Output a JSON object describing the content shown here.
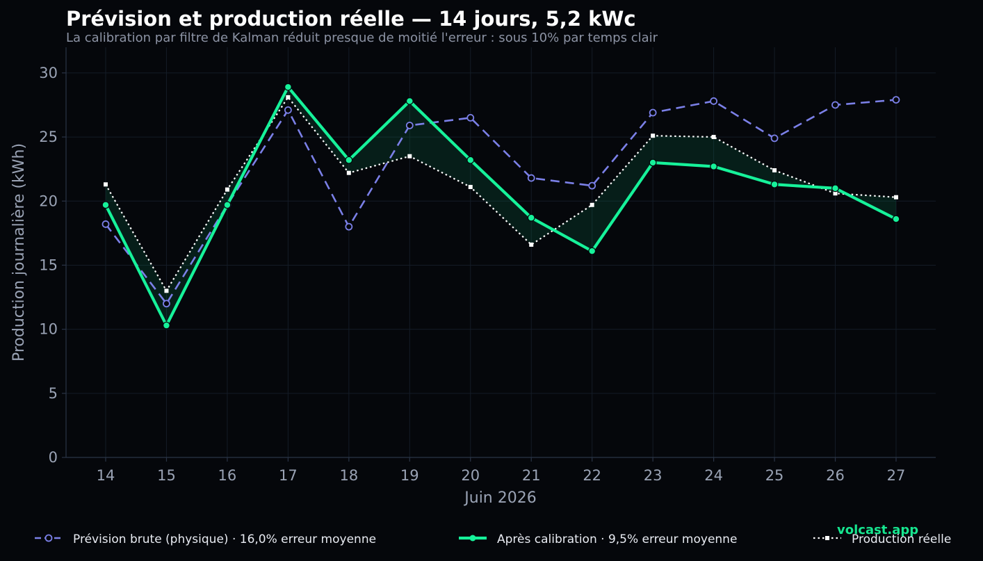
{
  "chart_data": {
    "type": "line",
    "title": "Prévision et production réelle — 14 jours, 5,2 kWc",
    "subtitle": "La calibration par filtre de Kalman réduit presque de moitié l'erreur : sous 10% par temps clair",
    "xlabel": "Juin 2026",
    "ylabel": "Production journalière (kWh)",
    "categories": [
      "14",
      "15",
      "16",
      "17",
      "18",
      "19",
      "20",
      "21",
      "22",
      "23",
      "24",
      "25",
      "26",
      "27"
    ],
    "ylim": [
      0,
      32
    ],
    "yticks": [
      0,
      5,
      10,
      15,
      20,
      25,
      30
    ],
    "grid": true,
    "legend_position": "bottom",
    "series": [
      {
        "name": "Prévision brute (physique)  ·  16,0% erreur moyenne",
        "color": "#7b80e8",
        "style": "dashed",
        "marker": "circle-open",
        "values": [
          18.2,
          12.0,
          19.7,
          27.1,
          18.0,
          25.9,
          26.5,
          21.8,
          21.2,
          26.9,
          27.8,
          24.9,
          27.5,
          27.9
        ]
      },
      {
        "name": "Après calibration  ·  9,5% erreur moyenne",
        "color": "#16f29a",
        "style": "solid",
        "marker": "circle-filled",
        "values": [
          19.7,
          10.3,
          19.7,
          28.9,
          23.2,
          27.8,
          23.2,
          18.7,
          16.1,
          23.0,
          22.7,
          21.3,
          21.0,
          18.6
        ]
      },
      {
        "name": "Production réelle",
        "color": "#ffffff",
        "style": "dotted",
        "marker": "square",
        "values": [
          21.3,
          13.0,
          20.9,
          28.1,
          22.2,
          23.5,
          21.1,
          16.6,
          19.7,
          25.1,
          25.0,
          22.4,
          20.6,
          20.3
        ]
      }
    ],
    "shaded_band": {
      "between": [
        "Après calibration  ·  9,5% erreur moyenne",
        "Production réelle"
      ],
      "color": "#0c8a5a"
    }
  },
  "watermark": "volcast.app",
  "colors": {
    "background": "#05070b",
    "grid": "#141c27",
    "axis": "#2a3446",
    "text_muted": "#9aa3b5"
  }
}
